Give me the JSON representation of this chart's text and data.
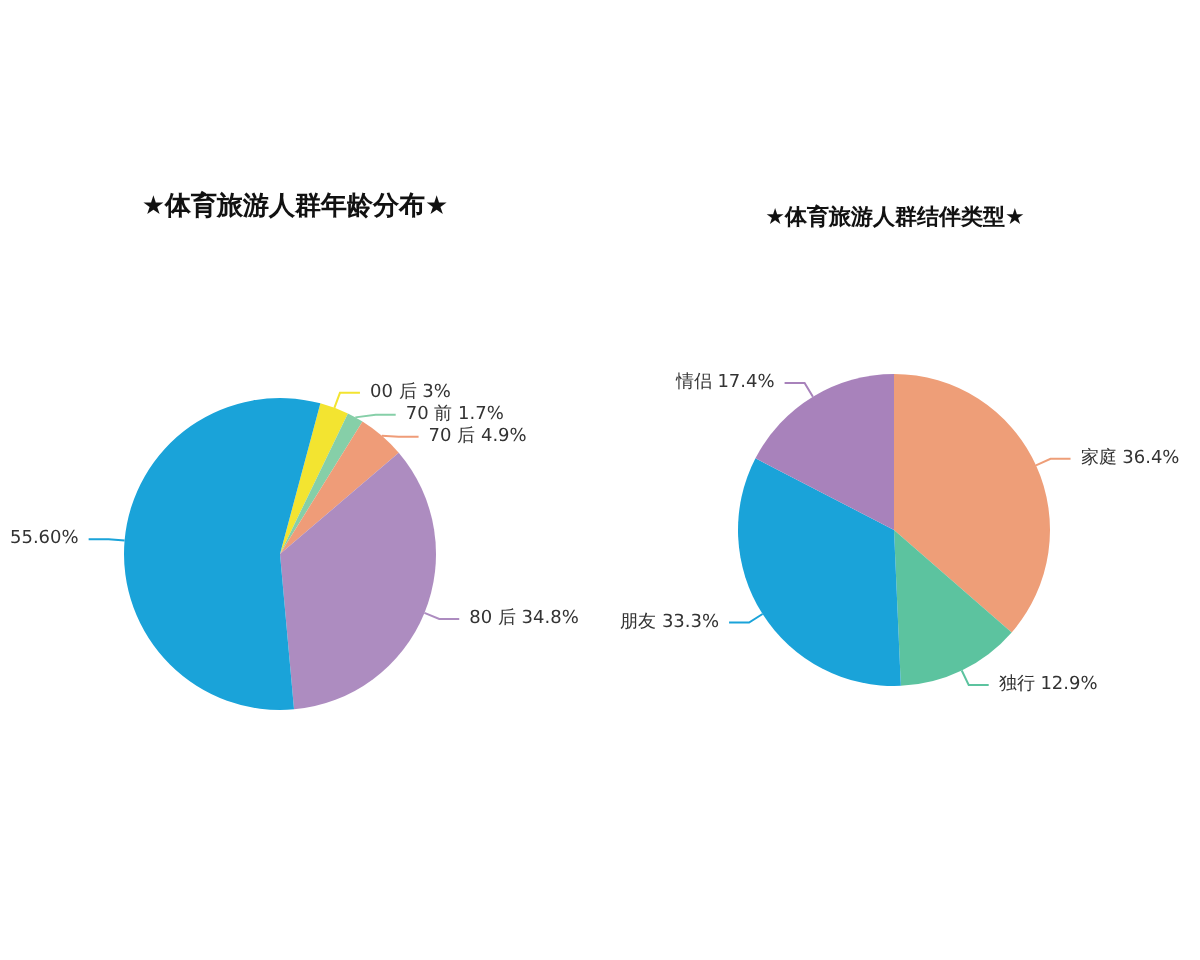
{
  "chart_data": [
    {
      "type": "pie",
      "title": "★体育旅游人群年龄分布★",
      "categories": [
        "00 后",
        "70 前",
        "70 后",
        "80 后",
        null
      ],
      "values": [
        3,
        1.7,
        4.9,
        34.8,
        55.6
      ],
      "value_labels": [
        "3%",
        "1.7%",
        "4.9%",
        "34.8%",
        "55.60%"
      ],
      "colors": [
        "#f3e430",
        "#86cfa8",
        "#ef9c78",
        "#ad8cc0",
        "#1aa3d9"
      ]
    },
    {
      "type": "pie",
      "title": "★体育旅游人群结伴类型★",
      "categories": [
        "家庭",
        "独行",
        "朋友",
        "情侣"
      ],
      "values": [
        36.4,
        12.9,
        33.3,
        17.4
      ],
      "value_labels": [
        "36.4%",
        "12.9%",
        "33.3%",
        "17.4%"
      ],
      "colors": [
        "#ee9e78",
        "#5cc39f",
        "#1aa3d9",
        "#a882bb"
      ]
    }
  ]
}
